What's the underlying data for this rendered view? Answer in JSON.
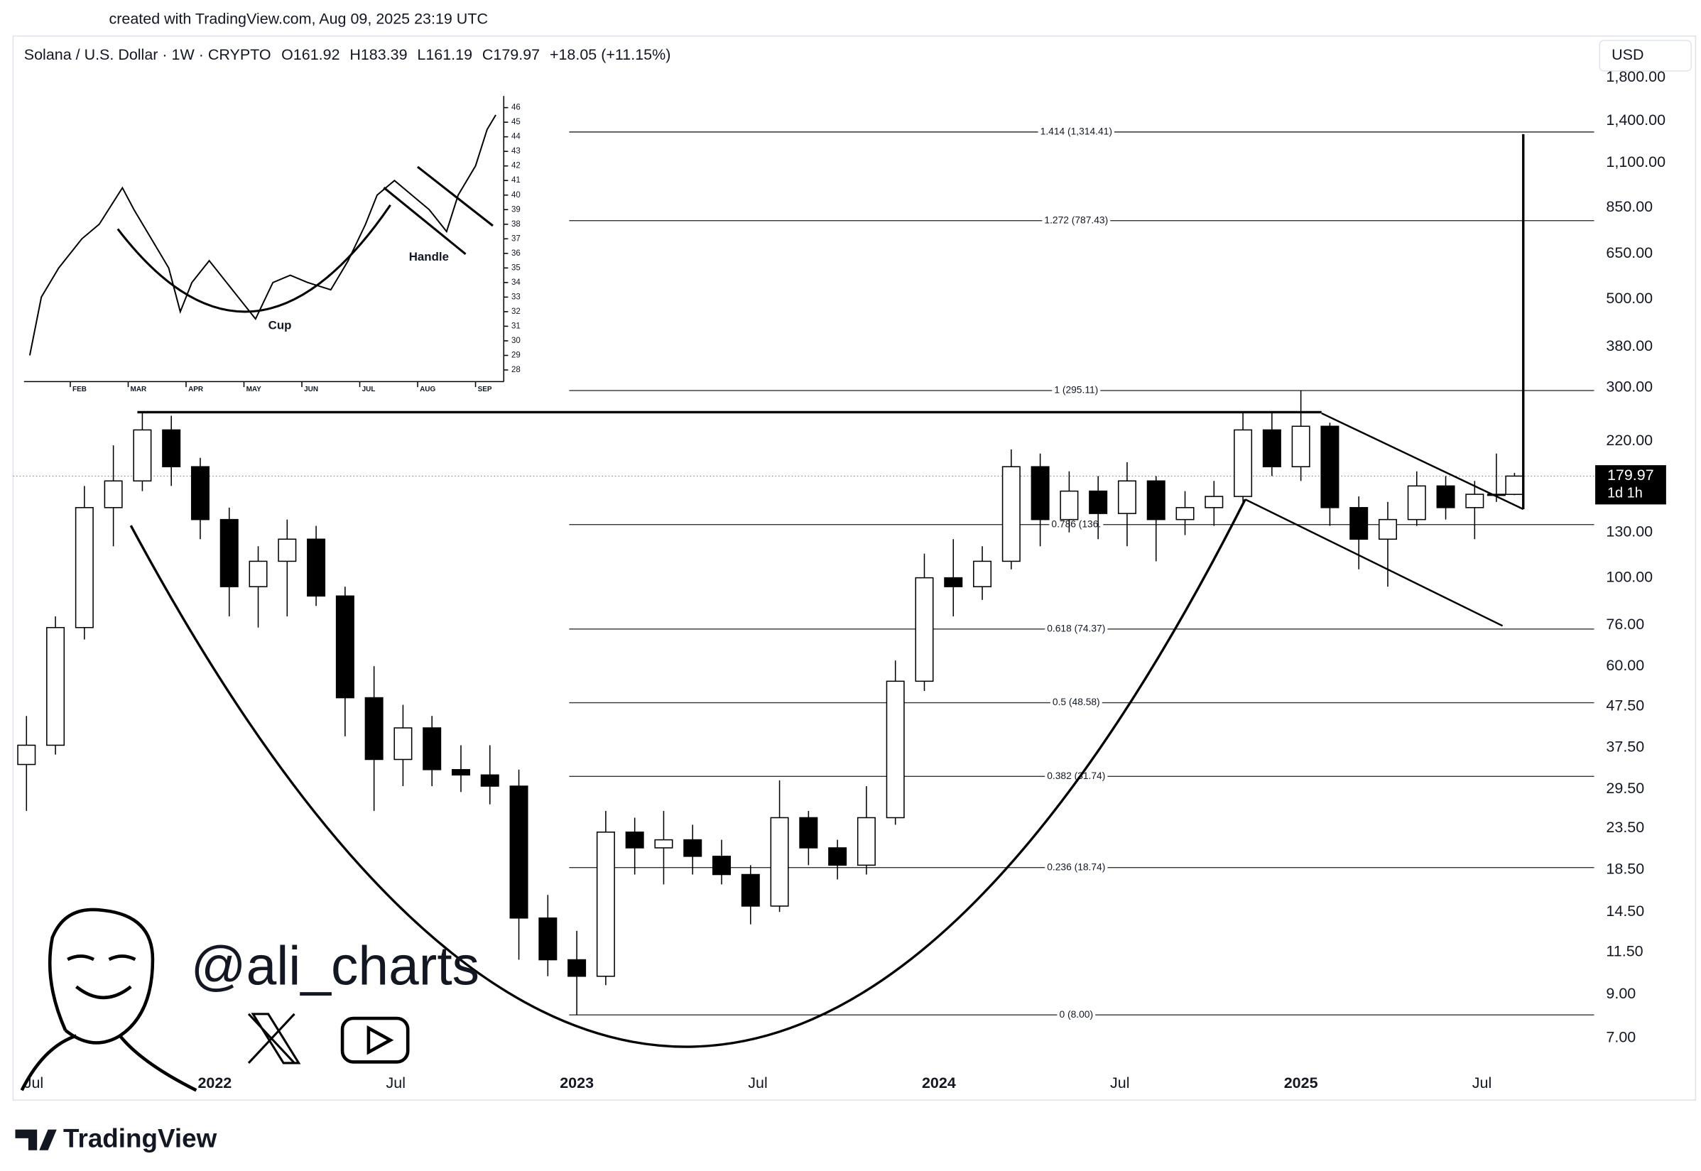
{
  "header": {
    "watermark": "created with TradingView.com, Aug 09, 2025 23:19 UTC"
  },
  "chart_data": [
    {
      "type": "candlestick",
      "title": "Solana / U.S. Dollar · 1W · CRYPTO",
      "legend_values": [
        "O161.92",
        "H183.39",
        "L161.19",
        "C179.97",
        "+18.05 (+11.15%)"
      ],
      "currency": "USD",
      "x": [
        2021.48,
        2021.56,
        2021.64,
        2021.72,
        2021.8,
        2021.88,
        2021.96,
        2022.04,
        2022.12,
        2022.2,
        2022.28,
        2022.36,
        2022.44,
        2022.52,
        2022.6,
        2022.68,
        2022.76,
        2022.84,
        2022.92,
        2023.0,
        2023.08,
        2023.16,
        2023.24,
        2023.32,
        2023.4,
        2023.48,
        2023.56,
        2023.64,
        2023.72,
        2023.8,
        2023.88,
        2023.96,
        2024.04,
        2024.12,
        2024.2,
        2024.28,
        2024.36,
        2024.44,
        2024.52,
        2024.6,
        2024.68,
        2024.76,
        2024.84,
        2024.92,
        2025.0,
        2025.08,
        2025.16,
        2025.24,
        2025.32,
        2025.4,
        2025.48,
        2025.54,
        2025.59
      ],
      "open": [
        34,
        38,
        75,
        150,
        175,
        235,
        190,
        140,
        95,
        110,
        125,
        90,
        50,
        35,
        42,
        33,
        32,
        30,
        14,
        11,
        10,
        23,
        21,
        22,
        20,
        18,
        15,
        25,
        21,
        19,
        25,
        55,
        100,
        95,
        110,
        190,
        140,
        165,
        145,
        175,
        140,
        150,
        160,
        235,
        190,
        240,
        150,
        125,
        140,
        170,
        150,
        162,
        161.92
      ],
      "high": [
        45,
        80,
        170,
        215,
        260,
        255,
        200,
        150,
        120,
        140,
        135,
        95,
        60,
        48,
        45,
        38,
        38,
        33,
        16,
        13,
        26,
        25,
        26,
        24,
        22,
        19,
        31,
        26,
        22,
        30,
        62,
        115,
        125,
        120,
        210,
        205,
        185,
        180,
        195,
        180,
        165,
        175,
        260,
        260,
        295,
        245,
        160,
        155,
        185,
        180,
        175,
        205,
        183.39
      ],
      "low": [
        26,
        36,
        70,
        120,
        165,
        170,
        125,
        80,
        75,
        80,
        85,
        40,
        26,
        30,
        30,
        29,
        27,
        11,
        10,
        8,
        9.5,
        18,
        17,
        18,
        17,
        13.5,
        14.5,
        19,
        17.5,
        18,
        24,
        52,
        80,
        88,
        105,
        120,
        130,
        125,
        120,
        110,
        128,
        135,
        155,
        180,
        175,
        135,
        105,
        95,
        135,
        140,
        125,
        155,
        161.19
      ],
      "close": [
        38,
        75,
        150,
        175,
        235,
        190,
        140,
        95,
        110,
        125,
        90,
        50,
        35,
        42,
        33,
        32,
        30,
        14,
        11,
        10,
        23,
        21,
        22,
        20,
        18,
        15,
        25,
        21,
        19,
        25,
        55,
        100,
        95,
        110,
        190,
        140,
        165,
        145,
        175,
        140,
        150,
        160,
        235,
        190,
        240,
        150,
        125,
        140,
        170,
        150,
        162,
        161.92,
        179.97
      ],
      "up_color": "#ffffff",
      "down_color": "#000000",
      "wick_color": "#000000",
      "xlim": [
        2021.443,
        2025.81
      ],
      "xticks": [
        {
          "value": 2021.5,
          "label": "Jul"
        },
        {
          "value": 2022,
          "label": "2022"
        },
        {
          "value": 2022.5,
          "label": "Jul"
        },
        {
          "value": 2023,
          "label": "2023"
        },
        {
          "value": 2023.5,
          "label": "Jul"
        },
        {
          "value": 2024,
          "label": "2024"
        },
        {
          "value": 2024.5,
          "label": "Jul"
        },
        {
          "value": 2025,
          "label": "2025"
        },
        {
          "value": 2025.5,
          "label": "Jul"
        }
      ],
      "ylim": [
        4.92,
        2260
      ],
      "log_scale": true,
      "yticks": [
        {
          "value": 1800,
          "label": "1,800.00"
        },
        {
          "value": 1400,
          "label": "1,400.00"
        },
        {
          "value": 1100,
          "label": "1,100.00"
        },
        {
          "value": 850,
          "label": "850.00"
        },
        {
          "value": 650,
          "label": "650.00"
        },
        {
          "value": 500,
          "label": "500.00"
        },
        {
          "value": 380,
          "label": "380.00"
        },
        {
          "value": 300,
          "label": "300.00"
        },
        {
          "value": 220,
          "label": "220.00"
        },
        {
          "value": 130,
          "label": "130.00"
        },
        {
          "value": 100,
          "label": "100.00"
        },
        {
          "value": 76,
          "label": "76.00"
        },
        {
          "value": 60,
          "label": "60.00"
        },
        {
          "value": 47.5,
          "label": "47.50"
        },
        {
          "value": 37.5,
          "label": "37.50"
        },
        {
          "value": 29.5,
          "label": "29.50"
        },
        {
          "value": 23.5,
          "label": "23.50"
        },
        {
          "value": 18.5,
          "label": "18.50"
        },
        {
          "value": 14.5,
          "label": "14.50"
        },
        {
          "value": 11.5,
          "label": "11.50"
        },
        {
          "value": 9,
          "label": "9.00"
        },
        {
          "value": 7,
          "label": "7.00"
        }
      ],
      "last_price": 179.97,
      "countdown": "1d 1h",
      "fib_levels": [
        {
          "label": "1.414 (1,314.41)",
          "value": 1314.41
        },
        {
          "label": "1.272 (787.43)",
          "value": 787.43
        },
        {
          "label": "1 (295.11)",
          "value": 295.11
        },
        {
          "label": "0.786 (136.",
          "value": 136
        },
        {
          "label": "0.618 (74.37)",
          "value": 74.37
        },
        {
          "label": "0.5 (48.58)",
          "value": 48.58
        },
        {
          "label": "0.382 (31.74)",
          "value": 31.74
        },
        {
          "label": "0.236 (18.74)",
          "value": 18.74
        },
        {
          "label": "0 (8.00)",
          "value": 8
        }
      ]
    },
    {
      "type": "line",
      "x": [
        0.3,
        0.5,
        0.8,
        1.2,
        1.5,
        1.9,
        2.1,
        2.4,
        2.7,
        2.9,
        3.1,
        3.4,
        3.7,
        3.9,
        4.2,
        4.5,
        4.8,
        5.1,
        5.5,
        5.8,
        6.1,
        6.3,
        6.6,
        6.9,
        7.2,
        7.5,
        7.7,
        8.0,
        8.2,
        8.35
      ],
      "values": [
        29,
        33,
        35,
        37,
        38,
        40.5,
        39,
        37,
        35,
        32,
        34,
        35.5,
        34,
        33,
        31.5,
        34,
        34.5,
        34,
        33.5,
        35.5,
        38,
        40,
        41,
        40,
        39,
        37.5,
        40,
        42,
        44.5,
        45.5
      ],
      "color": "#000000",
      "xlim": [
        0.2,
        8.45
      ],
      "xticks": [
        {
          "value": 1,
          "label": "FEB"
        },
        {
          "value": 2,
          "label": "MAR"
        },
        {
          "value": 3,
          "label": "APR"
        },
        {
          "value": 4,
          "label": "MAY"
        },
        {
          "value": 5,
          "label": "JUN"
        },
        {
          "value": 6,
          "label": "JUL"
        },
        {
          "value": 7,
          "label": "AUG"
        },
        {
          "value": 8,
          "label": "SEP"
        }
      ],
      "ylim": [
        27.2,
        46.8
      ],
      "yticks": [
        28,
        29,
        30,
        31,
        32,
        33,
        34,
        35,
        36,
        37,
        38,
        39,
        40,
        41,
        42,
        43,
        44,
        45,
        46
      ],
      "annotations": [
        "Cup",
        "Handle"
      ]
    }
  ],
  "branding": {
    "handle": "@ali_charts",
    "logo": "TradingView"
  }
}
